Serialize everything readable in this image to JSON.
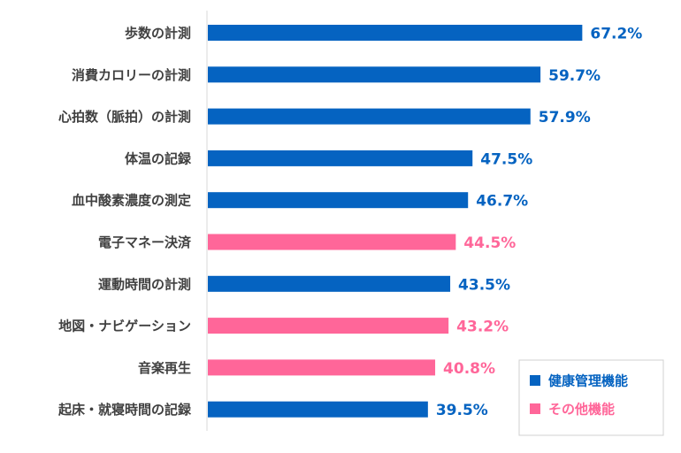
{
  "chart_data": {
    "type": "bar",
    "orientation": "horizontal",
    "categories": [
      "歩数の計測",
      "消費カロリーの計測",
      "心拍数（脈拍）の計測",
      "体温の記録",
      "血中酸素濃度の測定",
      "電子マネー決済",
      "運動時間の計測",
      "地図・ナビゲーション",
      "音楽再生",
      "起床・就寝時間の記録"
    ],
    "values": [
      67.2,
      59.7,
      57.9,
      47.5,
      46.7,
      44.5,
      43.5,
      43.2,
      40.8,
      39.5
    ],
    "value_labels": [
      "67.2%",
      "59.7%",
      "57.9%",
      "47.5%",
      "46.7%",
      "44.5%",
      "43.5%",
      "43.2%",
      "40.8%",
      "39.5%"
    ],
    "groups": [
      "健康管理機能",
      "健康管理機能",
      "健康管理機能",
      "健康管理機能",
      "健康管理機能",
      "その他機能",
      "健康管理機能",
      "その他機能",
      "その他機能",
      "健康管理機能"
    ],
    "legend": {
      "position": "bottom-right",
      "entries": [
        {
          "label": "健康管理機能",
          "color": "#0563C1"
        },
        {
          "label": "その他機能",
          "color": "#FF6699"
        }
      ]
    },
    "grid": false,
    "xlim": [
      0,
      100
    ]
  }
}
